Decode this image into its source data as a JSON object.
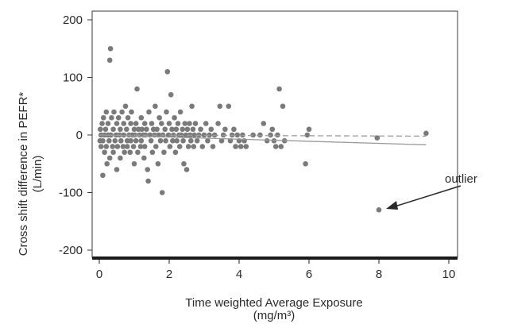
{
  "chart_data": {
    "type": "scatter",
    "title": "",
    "xlabel": "Time weighted Average Exposure",
    "xlabel_unit": "(mg/m³)",
    "ylabel": "Cross shift difference in PEFR*",
    "ylabel_unit": "(L/min)",
    "xlim": [
      0,
      10
    ],
    "ylim": [
      -210,
      215
    ],
    "x_ticks": [
      0,
      2,
      4,
      6,
      8,
      10
    ],
    "y_ticks": [
      -200,
      -100,
      0,
      100,
      200
    ],
    "grid": false,
    "legend": "none",
    "colors": {
      "points": "#7a7a7a",
      "solid_line": "#9a9a9a",
      "dashed_line": "#9a9a9a",
      "axis": "#1a1a1a"
    },
    "points": [
      [
        0.02,
        -10
      ],
      [
        0.03,
        10
      ],
      [
        0.05,
        -20
      ],
      [
        0.05,
        0
      ],
      [
        0.08,
        20
      ],
      [
        0.1,
        -70
      ],
      [
        0.1,
        -10
      ],
      [
        0.12,
        30
      ],
      [
        0.15,
        0
      ],
      [
        0.15,
        -30
      ],
      [
        0.18,
        10
      ],
      [
        0.2,
        -20
      ],
      [
        0.2,
        40
      ],
      [
        0.22,
        -50
      ],
      [
        0.25,
        0
      ],
      [
        0.25,
        20
      ],
      [
        0.28,
        -10
      ],
      [
        0.3,
        130
      ],
      [
        0.3,
        -40
      ],
      [
        0.32,
        150
      ],
      [
        0.33,
        0
      ],
      [
        0.35,
        30
      ],
      [
        0.38,
        -20
      ],
      [
        0.4,
        10
      ],
      [
        0.4,
        -30
      ],
      [
        0.42,
        40
      ],
      [
        0.45,
        -10
      ],
      [
        0.48,
        0
      ],
      [
        0.5,
        20
      ],
      [
        0.5,
        -60
      ],
      [
        0.52,
        -20
      ],
      [
        0.55,
        30
      ],
      [
        0.58,
        0
      ],
      [
        0.6,
        -40
      ],
      [
        0.6,
        10
      ],
      [
        0.62,
        -10
      ],
      [
        0.65,
        40
      ],
      [
        0.68,
        -20
      ],
      [
        0.7,
        20
      ],
      [
        0.7,
        0
      ],
      [
        0.72,
        -30
      ],
      [
        0.75,
        50
      ],
      [
        0.78,
        10
      ],
      [
        0.8,
        -10
      ],
      [
        0.8,
        -20
      ],
      [
        0.82,
        30
      ],
      [
        0.85,
        0
      ],
      [
        0.88,
        -30
      ],
      [
        0.9,
        20
      ],
      [
        0.9,
        -10
      ],
      [
        0.92,
        40
      ],
      [
        0.95,
        0
      ],
      [
        0.98,
        -20
      ],
      [
        1.0,
        10
      ],
      [
        1.0,
        -50
      ],
      [
        1.02,
        0
      ],
      [
        1.05,
        -10
      ],
      [
        1.05,
        20
      ],
      [
        1.08,
        80
      ],
      [
        1.1,
        -30
      ],
      [
        1.12,
        10
      ],
      [
        1.15,
        0
      ],
      [
        1.18,
        -20
      ],
      [
        1.2,
        30
      ],
      [
        1.2,
        -10
      ],
      [
        1.22,
        10
      ],
      [
        1.25,
        0
      ],
      [
        1.28,
        -40
      ],
      [
        1.3,
        20
      ],
      [
        1.3,
        -20
      ],
      [
        1.32,
        0
      ],
      [
        1.35,
        10
      ],
      [
        1.38,
        -60
      ],
      [
        1.4,
        -80
      ],
      [
        1.42,
        40
      ],
      [
        1.45,
        0
      ],
      [
        1.48,
        -10
      ],
      [
        1.5,
        20
      ],
      [
        1.52,
        -30
      ],
      [
        1.55,
        10
      ],
      [
        1.58,
        0
      ],
      [
        1.6,
        50
      ],
      [
        1.62,
        -20
      ],
      [
        1.65,
        10
      ],
      [
        1.68,
        -50
      ],
      [
        1.7,
        0
      ],
      [
        1.72,
        30
      ],
      [
        1.75,
        -10
      ],
      [
        1.78,
        20
      ],
      [
        1.8,
        -100
      ],
      [
        1.82,
        0
      ],
      [
        1.85,
        -30
      ],
      [
        1.88,
        10
      ],
      [
        1.9,
        -10
      ],
      [
        1.92,
        40
      ],
      [
        1.95,
        110
      ],
      [
        1.98,
        0
      ],
      [
        2.0,
        20
      ],
      [
        2.02,
        -20
      ],
      [
        2.05,
        70
      ],
      [
        2.08,
        10
      ],
      [
        2.1,
        -10
      ],
      [
        2.12,
        0
      ],
      [
        2.15,
        30
      ],
      [
        2.18,
        -30
      ],
      [
        2.2,
        10
      ],
      [
        2.22,
        -10
      ],
      [
        2.25,
        20
      ],
      [
        2.28,
        0
      ],
      [
        2.3,
        -20
      ],
      [
        2.32,
        40
      ],
      [
        2.35,
        0
      ],
      [
        2.38,
        10
      ],
      [
        2.4,
        -10
      ],
      [
        2.42,
        -50
      ],
      [
        2.45,
        20
      ],
      [
        2.48,
        0
      ],
      [
        2.5,
        -60
      ],
      [
        2.52,
        10
      ],
      [
        2.55,
        -20
      ],
      [
        2.58,
        20
      ],
      [
        2.6,
        0
      ],
      [
        2.62,
        -10
      ],
      [
        2.65,
        50
      ],
      [
        2.68,
        10
      ],
      [
        2.7,
        -20
      ],
      [
        2.72,
        0
      ],
      [
        2.75,
        20
      ],
      [
        2.8,
        -10
      ],
      [
        2.85,
        0
      ],
      [
        2.9,
        10
      ],
      [
        2.95,
        -20
      ],
      [
        3.0,
        0
      ],
      [
        3.05,
        20
      ],
      [
        3.1,
        -10
      ],
      [
        3.15,
        0
      ],
      [
        3.2,
        10
      ],
      [
        3.25,
        -20
      ],
      [
        3.3,
        0
      ],
      [
        3.4,
        20
      ],
      [
        3.45,
        50
      ],
      [
        3.5,
        -10
      ],
      [
        3.55,
        0
      ],
      [
        3.6,
        10
      ],
      [
        3.7,
        50
      ],
      [
        3.75,
        -10
      ],
      [
        3.8,
        0
      ],
      [
        3.85,
        10
      ],
      [
        3.9,
        -20
      ],
      [
        3.95,
        0
      ],
      [
        4.0,
        -10
      ],
      [
        4.05,
        -20
      ],
      [
        4.1,
        0
      ],
      [
        4.15,
        -10
      ],
      [
        4.2,
        -20
      ],
      [
        4.4,
        0
      ],
      [
        4.6,
        0
      ],
      [
        4.7,
        20
      ],
      [
        4.8,
        -10
      ],
      [
        4.9,
        0
      ],
      [
        4.95,
        10
      ],
      [
        5.0,
        -10
      ],
      [
        5.05,
        -20
      ],
      [
        5.1,
        0
      ],
      [
        5.15,
        80
      ],
      [
        5.2,
        -20
      ],
      [
        5.25,
        50
      ],
      [
        5.3,
        -10
      ],
      [
        5.9,
        -50
      ],
      [
        5.95,
        0
      ],
      [
        6.0,
        10
      ],
      [
        7.95,
        -5
      ],
      [
        8.0,
        -130
      ],
      [
        9.35,
        3
      ]
    ],
    "dashed_line": {
      "from": [
        0,
        0
      ],
      "to": [
        9.35,
        -2
      ]
    },
    "solid_line": {
      "from": [
        0,
        0
      ],
      "to": [
        9.35,
        -17
      ]
    },
    "annotation": {
      "text": "outlier",
      "target": [
        8.35,
        -128
      ]
    }
  }
}
